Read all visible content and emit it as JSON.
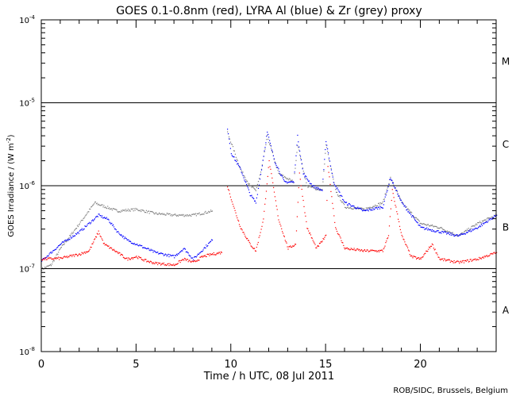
{
  "chart_data": {
    "type": "scatter",
    "title": "GOES 0.1-0.8nm (red), LYRA Al (blue) & Zr (grey) proxy",
    "xlabel": "Time / h UTC, 08 Jul 2011",
    "ylabel": "GOES Irradiance / (W m",
    "ylabel_sup": "-2",
    "ylabel_end": ")",
    "credit": "ROB/SIDC, Brussels, Belgium",
    "xlim": [
      0,
      24
    ],
    "ylim": [
      1e-08,
      0.0001
    ],
    "yscale": "log",
    "xticks": [
      0,
      5,
      10,
      15,
      20
    ],
    "yticks": [
      {
        "base": "10",
        "exp": "-8",
        "value": -8
      },
      {
        "base": "10",
        "exp": "-7",
        "value": -7
      },
      {
        "base": "10",
        "exp": "-6",
        "value": -6
      },
      {
        "base": "10",
        "exp": "-5",
        "value": -5
      },
      {
        "base": "10",
        "exp": "-4",
        "value": -4
      }
    ],
    "hlines_log10": [
      -7,
      -6,
      -5
    ],
    "flare_classes": [
      {
        "label": "A",
        "log10": -7.5
      },
      {
        "label": "B",
        "log10": -6.5
      },
      {
        "label": "C",
        "log10": -5.5
      },
      {
        "label": "M",
        "log10": -4.5
      }
    ],
    "series": [
      {
        "name": "LYRA Zr proxy",
        "color": "#808080",
        "segments": [
          [
            [
              0,
              -7.0
            ],
            [
              0.5,
              -6.95
            ],
            [
              1,
              -6.75
            ],
            [
              2,
              -6.45
            ],
            [
              2.8,
              -6.2
            ],
            [
              3,
              -6.22
            ],
            [
              4,
              -6.3
            ],
            [
              5,
              -6.28
            ],
            [
              6,
              -6.33
            ],
            [
              7,
              -6.35
            ],
            [
              8,
              -6.35
            ],
            [
              9,
              -6.3
            ]
          ],
          [
            [
              9.8,
              -5.35
            ],
            [
              10.5,
              -5.8
            ],
            [
              11,
              -6.0
            ],
            [
              11.3,
              -6.05
            ],
            [
              11.6,
              -5.8
            ],
            [
              11.9,
              -5.4
            ],
            [
              12.5,
              -5.85
            ],
            [
              13.3,
              -5.95
            ],
            [
              13.5,
              -5.5
            ],
            [
              14,
              -6.0
            ],
            [
              14.8,
              -6.05
            ],
            [
              15,
              -5.5
            ],
            [
              15.5,
              -6.05
            ],
            [
              16,
              -6.25
            ],
            [
              17,
              -6.28
            ],
            [
              18,
              -6.2
            ],
            [
              18.4,
              -5.9
            ],
            [
              19,
              -6.2
            ],
            [
              20,
              -6.45
            ],
            [
              21,
              -6.5
            ],
            [
              22,
              -6.6
            ],
            [
              23,
              -6.45
            ],
            [
              24,
              -6.35
            ]
          ]
        ]
      },
      {
        "name": "LYRA Al proxy",
        "color": "#0000ff",
        "segments": [
          [
            [
              0,
              -6.9
            ],
            [
              1,
              -6.7
            ],
            [
              2,
              -6.55
            ],
            [
              3,
              -6.35
            ],
            [
              3.5,
              -6.4
            ],
            [
              4,
              -6.55
            ],
            [
              4.5,
              -6.65
            ],
            [
              5,
              -6.7
            ],
            [
              6,
              -6.8
            ],
            [
              7,
              -6.85
            ],
            [
              7.5,
              -6.75
            ],
            [
              8,
              -6.88
            ],
            [
              9,
              -6.65
            ]
          ],
          [
            [
              9.8,
              -5.3
            ],
            [
              10,
              -5.6
            ],
            [
              10.5,
              -5.8
            ],
            [
              11,
              -6.1
            ],
            [
              11.3,
              -6.2
            ],
            [
              11.6,
              -5.8
            ],
            [
              11.9,
              -5.35
            ],
            [
              12.3,
              -5.7
            ],
            [
              12.8,
              -5.95
            ],
            [
              13.3,
              -5.95
            ],
            [
              13.5,
              -5.4
            ],
            [
              13.8,
              -5.85
            ],
            [
              14.3,
              -6.0
            ],
            [
              14.8,
              -6.05
            ],
            [
              15,
              -5.45
            ],
            [
              15.4,
              -5.95
            ],
            [
              16,
              -6.2
            ],
            [
              17,
              -6.3
            ],
            [
              18,
              -6.25
            ],
            [
              18.4,
              -5.9
            ],
            [
              18.7,
              -6.05
            ],
            [
              19,
              -6.2
            ],
            [
              20,
              -6.5
            ],
            [
              21,
              -6.55
            ],
            [
              22,
              -6.6
            ],
            [
              23,
              -6.5
            ],
            [
              24,
              -6.35
            ]
          ]
        ]
      },
      {
        "name": "GOES 0.1-0.8nm",
        "color": "#ff0000",
        "segments": [
          [
            [
              0,
              -6.88
            ],
            [
              1,
              -6.87
            ],
            [
              2,
              -6.82
            ],
            [
              2.5,
              -6.78
            ],
            [
              3,
              -6.55
            ],
            [
              3.3,
              -6.7
            ],
            [
              4,
              -6.8
            ],
            [
              4.5,
              -6.88
            ],
            [
              5,
              -6.85
            ],
            [
              5.5,
              -6.9
            ],
            [
              6,
              -6.93
            ],
            [
              7,
              -6.95
            ],
            [
              7.5,
              -6.88
            ],
            [
              8,
              -6.92
            ],
            [
              8.5,
              -6.85
            ],
            [
              9,
              -6.82
            ],
            [
              9.5,
              -6.8
            ]
          ],
          [
            [
              9.8,
              -6.0
            ],
            [
              10.2,
              -6.3
            ],
            [
              10.5,
              -6.5
            ],
            [
              11,
              -6.7
            ],
            [
              11.3,
              -6.78
            ],
            [
              11.7,
              -6.4
            ],
            [
              12.0,
              -5.7
            ],
            [
              12.5,
              -6.4
            ],
            [
              13,
              -6.75
            ],
            [
              13.4,
              -6.7
            ],
            [
              13.6,
              -5.85
            ],
            [
              14,
              -6.5
            ],
            [
              14.5,
              -6.75
            ],
            [
              15,
              -6.6
            ],
            [
              15.1,
              -5.75
            ],
            [
              15.5,
              -6.5
            ],
            [
              16,
              -6.75
            ],
            [
              17,
              -6.78
            ],
            [
              18,
              -6.78
            ],
            [
              18.3,
              -6.6
            ],
            [
              18.5,
              -6.05
            ],
            [
              19,
              -6.6
            ],
            [
              19.5,
              -6.85
            ],
            [
              20,
              -6.88
            ],
            [
              20.6,
              -6.7
            ],
            [
              21,
              -6.88
            ],
            [
              22,
              -6.92
            ],
            [
              23,
              -6.88
            ],
            [
              24,
              -6.8
            ]
          ]
        ]
      }
    ]
  }
}
